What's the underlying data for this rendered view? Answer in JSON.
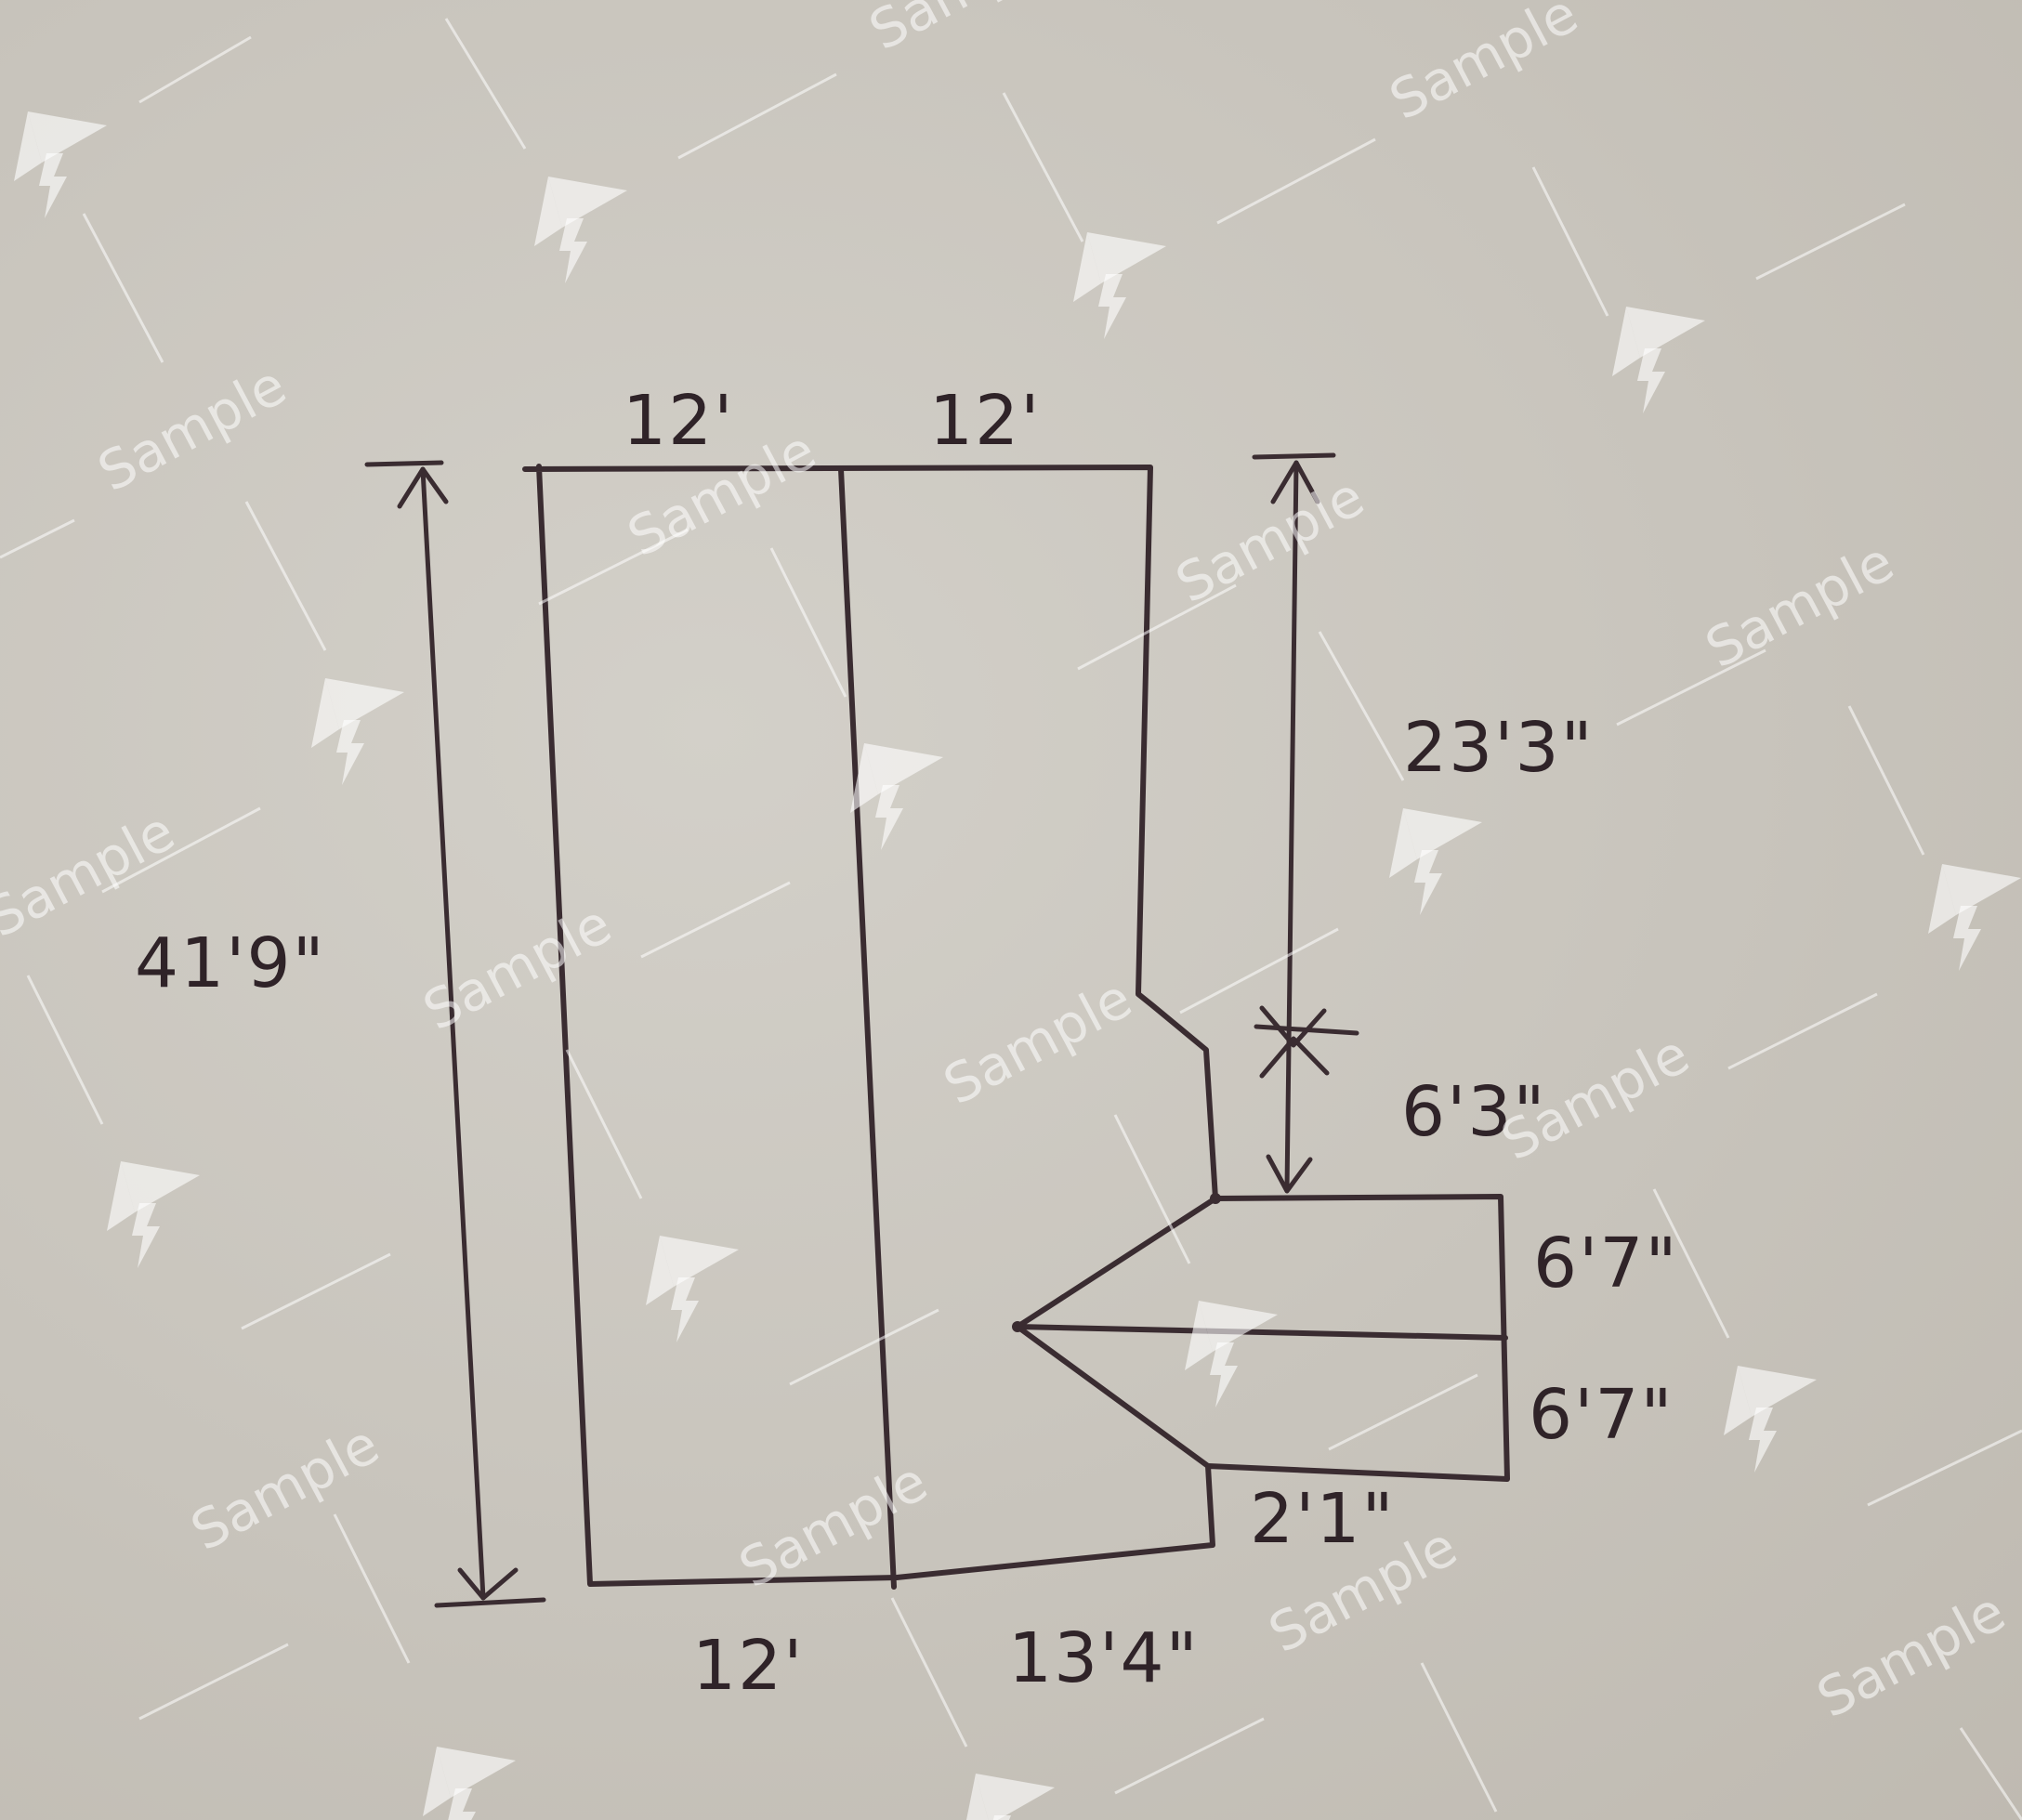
{
  "dimensions": {
    "top_left_width": "12'",
    "top_right_width": "12'",
    "total_height": "41'9\"",
    "upper_right_height": "23'3\"",
    "notch_height": "6'3\"",
    "upper_step_height": "6'7\"",
    "lower_step_height": "6'7\"",
    "bottom_step_height": "2'1\"",
    "bottom_left_width": "12'",
    "bottom_right_width": "13'4\""
  },
  "watermark": {
    "text": "Sample",
    "icon": "paper-plane-lightning-logo"
  }
}
